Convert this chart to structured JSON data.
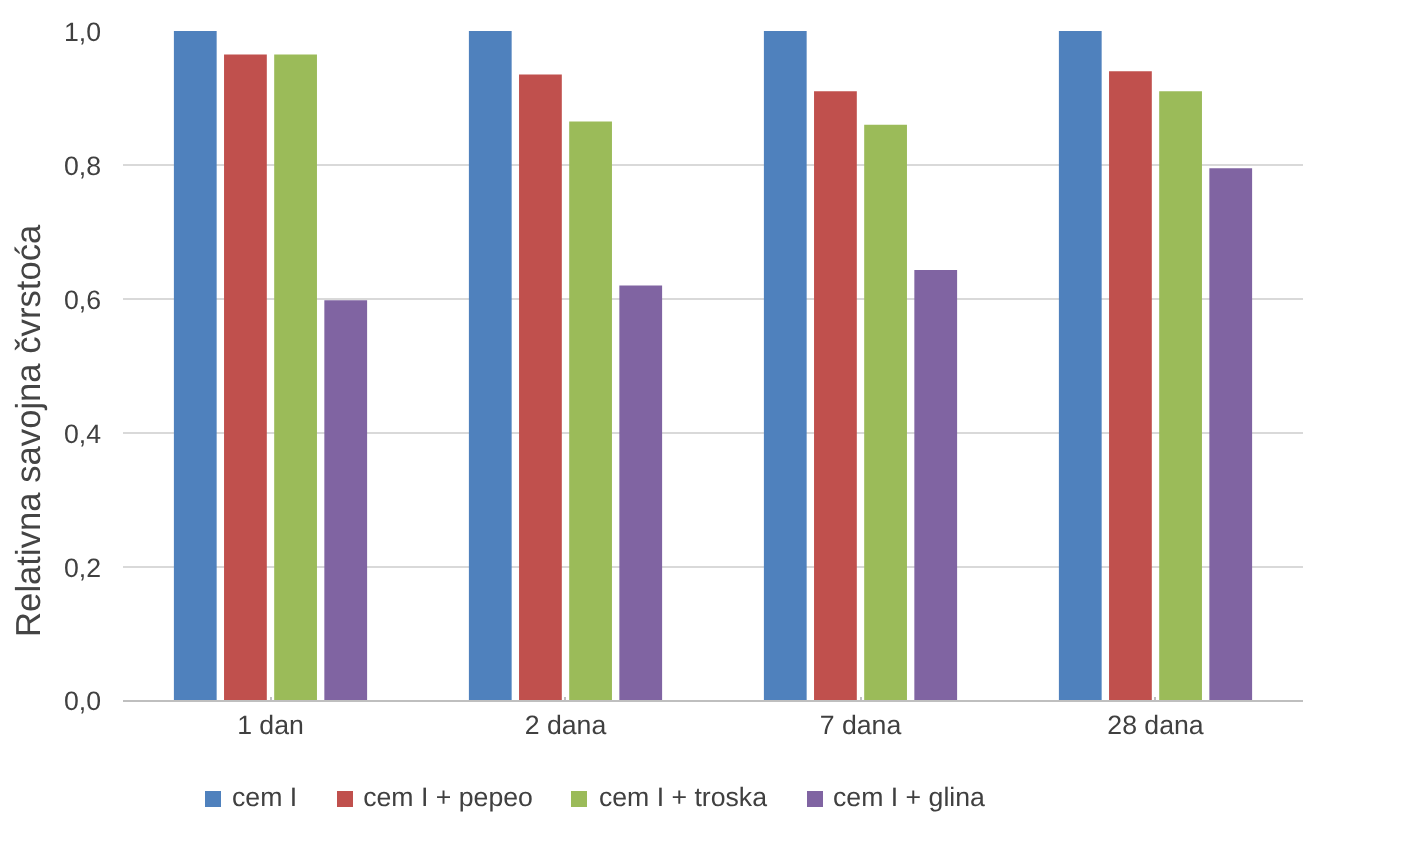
{
  "chart_data": {
    "type": "bar",
    "ylabel": "Relativna savojna  čvrstoća",
    "categories": [
      "1 dan",
      "2 dana",
      "7 dana",
      "28 dana"
    ],
    "series": [
      {
        "name": "cem I",
        "color": "#4f81bd",
        "values": [
          1.0,
          1.0,
          1.0,
          1.0
        ]
      },
      {
        "name": "cem I + pepeo",
        "color": "#c0504d",
        "values": [
          0.965,
          0.935,
          0.91,
          0.94
        ]
      },
      {
        "name": "cem I + troska",
        "color": "#9bbb59",
        "values": [
          0.965,
          0.865,
          0.86,
          0.91
        ]
      },
      {
        "name": "cem I + glina",
        "color": "#8064a2",
        "values": [
          0.598,
          0.62,
          0.643,
          0.795
        ]
      }
    ],
    "ylim": [
      0,
      1.0
    ],
    "yticks": [
      {
        "value": 0,
        "label": "0,0"
      },
      {
        "value": 0.2,
        "label": "0,2"
      },
      {
        "value": 0.4,
        "label": "0,4"
      },
      {
        "value": 0.6,
        "label": "0,6"
      },
      {
        "value": 0.8,
        "label": "0,8"
      },
      {
        "value": 1.0,
        "label": "1,0"
      }
    ],
    "grid": "y",
    "legend": "bottom"
  }
}
